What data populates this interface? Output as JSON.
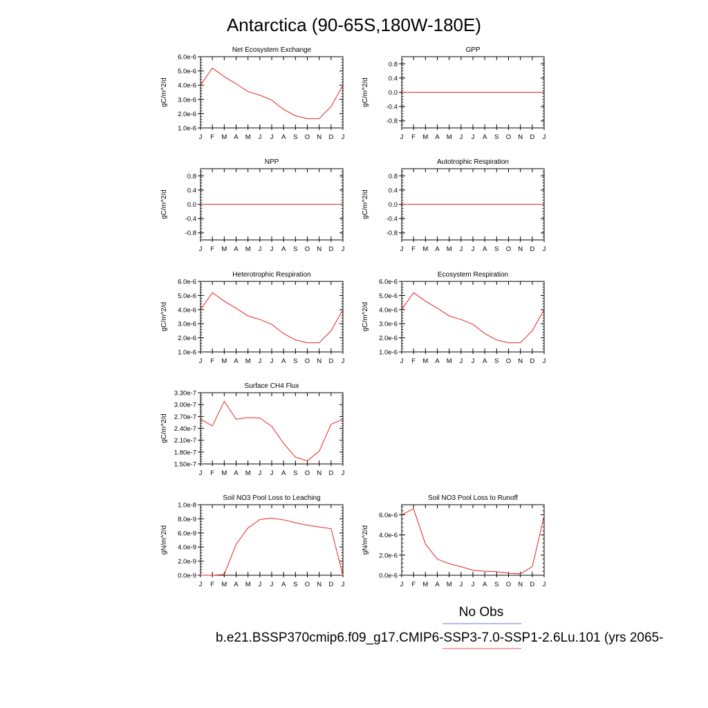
{
  "figure": {
    "title": "Antarctica (90-65S,180W-180E)",
    "legend": [
      {
        "label": "No Obs",
        "color": "#8c8cf0"
      },
      {
        "label": "b.e21.BSSP370cmip6.f09_g17.CMIP6-SSP3-7.0-SSP1-2.6Lu.101 (yrs 2065-",
        "color": "#f07878"
      }
    ]
  },
  "chart_data": [
    {
      "type": "line",
      "title": "Net Ecosystem Exchange",
      "ylabel": "gC/m^2/d",
      "categories": [
        "J",
        "F",
        "M",
        "A",
        "M",
        "J",
        "J",
        "A",
        "S",
        "O",
        "N",
        "D",
        "J"
      ],
      "ylim": [
        1e-06,
        6e-06
      ],
      "yticks": [
        1e-06,
        2e-06,
        3e-06,
        4e-06,
        5e-06,
        6e-06
      ],
      "ytick_labels": [
        "1.0e-6",
        "2.0e-6",
        "3.0e-6",
        "4.0e-6",
        "5.0e-6",
        "6.0e-6"
      ],
      "series": [
        {
          "color": "#e8231f",
          "values": [
            4e-06,
            5.2e-06,
            4.6e-06,
            4.1e-06,
            3.55e-06,
            3.3e-06,
            2.95e-06,
            2.3e-06,
            1.85e-06,
            1.65e-06,
            1.65e-06,
            2.5e-06,
            4e-06
          ]
        }
      ]
    },
    {
      "type": "line",
      "title": "GPP",
      "ylabel": "gC/m^2/d",
      "categories": [
        "J",
        "F",
        "M",
        "A",
        "M",
        "J",
        "J",
        "A",
        "S",
        "O",
        "N",
        "D",
        "J"
      ],
      "ylim": [
        -1.0,
        1.0
      ],
      "yticks": [
        -0.8,
        -0.4,
        0.0,
        0.4,
        0.8
      ],
      "ytick_labels": [
        "-0.8",
        "-0.4",
        "0.0",
        "0.4",
        "0.8"
      ],
      "series": [
        {
          "color": "#e8231f",
          "values": [
            0,
            0,
            0,
            0,
            0,
            0,
            0,
            0,
            0,
            0,
            0,
            0,
            0
          ]
        }
      ]
    },
    {
      "type": "line",
      "title": "NPP",
      "ylabel": "gC/m^2/d",
      "categories": [
        "J",
        "F",
        "M",
        "A",
        "M",
        "J",
        "J",
        "A",
        "S",
        "O",
        "N",
        "D",
        "J"
      ],
      "ylim": [
        -1.0,
        1.0
      ],
      "yticks": [
        -0.8,
        -0.4,
        0.0,
        0.4,
        0.8
      ],
      "ytick_labels": [
        "-0.8",
        "-0.4",
        "0.0",
        "0.4",
        "0.8"
      ],
      "series": [
        {
          "color": "#e8231f",
          "values": [
            0,
            0,
            0,
            0,
            0,
            0,
            0,
            0,
            0,
            0,
            0,
            0,
            0
          ]
        }
      ]
    },
    {
      "type": "line",
      "title": "Autotrophic Respiration",
      "ylabel": "gC/m^2/d",
      "categories": [
        "J",
        "F",
        "M",
        "A",
        "M",
        "J",
        "J",
        "A",
        "S",
        "O",
        "N",
        "D",
        "J"
      ],
      "ylim": [
        -1.0,
        1.0
      ],
      "yticks": [
        -0.8,
        -0.4,
        0.0,
        0.4,
        0.8
      ],
      "ytick_labels": [
        "-0.8",
        "-0.4",
        "0.0",
        "0.4",
        "0.8"
      ],
      "series": [
        {
          "color": "#e8231f",
          "values": [
            0,
            0,
            0,
            0,
            0,
            0,
            0,
            0,
            0,
            0,
            0,
            0,
            0
          ]
        }
      ]
    },
    {
      "type": "line",
      "title": "Heterotrophic Respiration",
      "ylabel": "gC/m^2/d",
      "categories": [
        "J",
        "F",
        "M",
        "A",
        "M",
        "J",
        "J",
        "A",
        "S",
        "O",
        "N",
        "D",
        "J"
      ],
      "ylim": [
        1e-06,
        6e-06
      ],
      "yticks": [
        1e-06,
        2e-06,
        3e-06,
        4e-06,
        5e-06,
        6e-06
      ],
      "ytick_labels": [
        "1.0e-6",
        "2.0e-6",
        "3.0e-6",
        "4.0e-6",
        "5.0e-6",
        "6.0e-6"
      ],
      "series": [
        {
          "color": "#e8231f",
          "values": [
            4e-06,
            5.2e-06,
            4.6e-06,
            4.1e-06,
            3.55e-06,
            3.3e-06,
            2.95e-06,
            2.3e-06,
            1.85e-06,
            1.65e-06,
            1.65e-06,
            2.5e-06,
            4e-06
          ]
        }
      ]
    },
    {
      "type": "line",
      "title": "Ecosystem Respiration",
      "ylabel": "gC/m^2/d",
      "categories": [
        "J",
        "F",
        "M",
        "A",
        "M",
        "J",
        "J",
        "A",
        "S",
        "O",
        "N",
        "D",
        "J"
      ],
      "ylim": [
        1e-06,
        6e-06
      ],
      "yticks": [
        1e-06,
        2e-06,
        3e-06,
        4e-06,
        5e-06,
        6e-06
      ],
      "ytick_labels": [
        "1.0e-6",
        "2.0e-6",
        "3.0e-6",
        "4.0e-6",
        "5.0e-6",
        "6.0e-6"
      ],
      "series": [
        {
          "color": "#e8231f",
          "values": [
            4e-06,
            5.2e-06,
            4.6e-06,
            4.1e-06,
            3.55e-06,
            3.3e-06,
            2.95e-06,
            2.3e-06,
            1.85e-06,
            1.65e-06,
            1.65e-06,
            2.5e-06,
            4e-06
          ]
        }
      ]
    },
    {
      "type": "line",
      "title": "Surface CH4 Flux",
      "ylabel": "gC/m^2/d",
      "categories": [
        "J",
        "F",
        "M",
        "A",
        "M",
        "J",
        "J",
        "A",
        "S",
        "O",
        "N",
        "D",
        "J"
      ],
      "ylim": [
        1.5e-07,
        3.3e-07
      ],
      "yticks": [
        1.5e-07,
        1.8e-07,
        2.1e-07,
        2.4e-07,
        2.7e-07,
        3e-07,
        3.3e-07
      ],
      "ytick_labels": [
        "1.50e-7",
        "1.80e-7",
        "2.10e-7",
        "2.40e-7",
        "2.70e-7",
        "3.00e-7",
        "3.30e-7"
      ],
      "series": [
        {
          "color": "#e8231f",
          "values": [
            2.63e-07,
            2.46e-07,
            3.08e-07,
            2.63e-07,
            2.67e-07,
            2.66e-07,
            2.45e-07,
            2.02e-07,
            1.67e-07,
            1.58e-07,
            1.82e-07,
            2.5e-07,
            2.63e-07
          ]
        }
      ]
    },
    {
      "type": "line",
      "title": "Soil NO3 Pool Loss to Leaching",
      "ylabel": "gN/m^2/d",
      "categories": [
        "J",
        "F",
        "M",
        "A",
        "M",
        "J",
        "J",
        "A",
        "S",
        "O",
        "N",
        "D",
        "J"
      ],
      "ylim": [
        0.0,
        1e-08
      ],
      "yticks": [
        0.0,
        2e-09,
        4e-09,
        6e-09,
        8e-09,
        1e-08
      ],
      "ytick_labels": [
        "0.0e-9",
        "2.0e-9",
        "4.0e-9",
        "6.0e-9",
        "8.0e-9",
        "1.0e-8"
      ],
      "series": [
        {
          "color": "#e8231f",
          "values": [
            0.0,
            0.0,
            1e-10,
            4.4e-09,
            6.7e-09,
            7.9e-09,
            8.1e-09,
            7.85e-09,
            7.45e-09,
            7.1e-09,
            6.85e-09,
            6.6e-09,
            0.0
          ]
        }
      ]
    },
    {
      "type": "line",
      "title": "Soil NO3 Pool Loss to Runoff",
      "ylabel": "gN/m^2/d",
      "categories": [
        "J",
        "F",
        "M",
        "A",
        "M",
        "J",
        "J",
        "A",
        "S",
        "O",
        "N",
        "D",
        "J"
      ],
      "ylim": [
        0.0,
        7e-06
      ],
      "yticks": [
        0.0,
        2e-06,
        4e-06,
        6e-06
      ],
      "ytick_labels": [
        "0.0e-6",
        "2.0e-6",
        "4.0e-6",
        "6.0e-6"
      ],
      "series": [
        {
          "color": "#e8231f",
          "values": [
            6e-06,
            6.6e-06,
            3.1e-06,
            1.6e-06,
            1.15e-06,
            8.5e-07,
            5e-07,
            4e-07,
            3.5e-07,
            2e-07,
            1.5e-07,
            8.5e-07,
            5.9e-06
          ]
        }
      ]
    }
  ]
}
